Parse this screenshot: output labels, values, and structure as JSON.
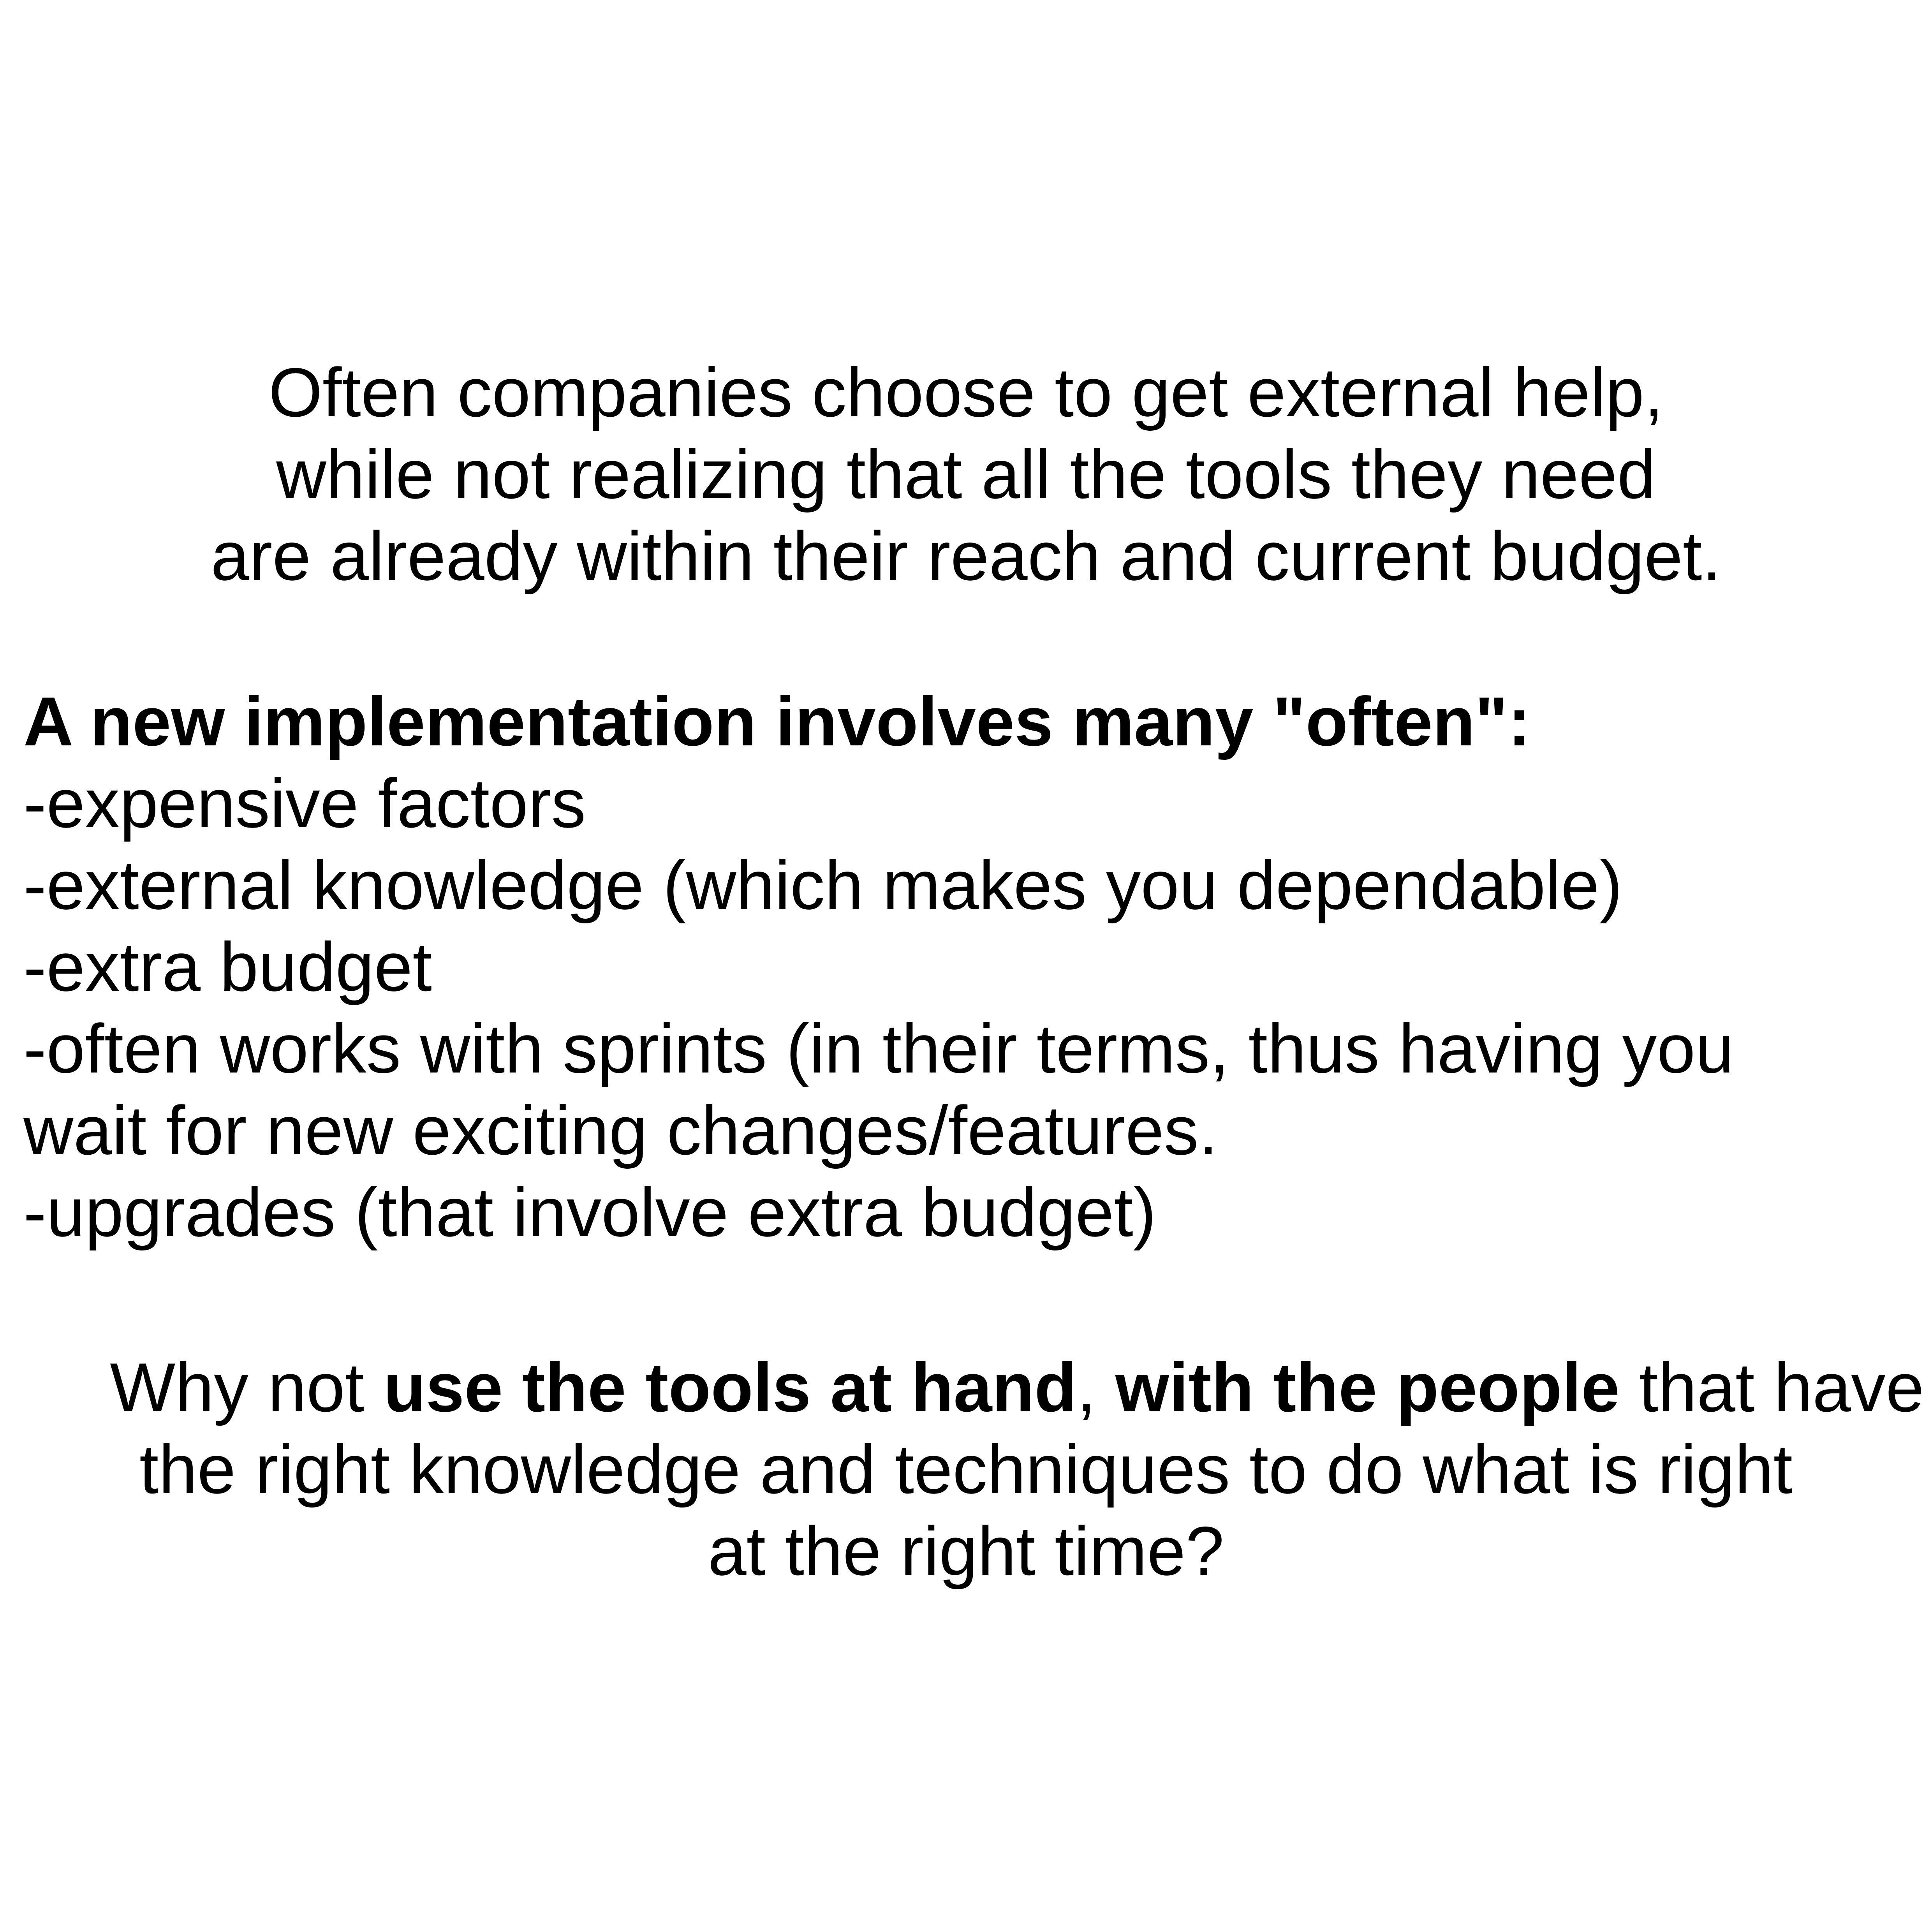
{
  "intro": {
    "lines": [
      "Often companies choose to get external help,",
      "while not realizing that all the tools they need",
      "are already within their reach and current budget."
    ]
  },
  "list": {
    "heading": "A new implementation involves many \"often\":",
    "items": [
      "-expensive factors",
      "-external knowledge (which makes you dependable)",
      "-extra budget",
      "-often works with sprints (in their terms, thus having you",
      "wait for new exciting changes/features.",
      "-upgrades (that involve extra budget)"
    ]
  },
  "closing": {
    "line1": {
      "prefix": "Why not ",
      "bold1": "use the tools at hand",
      "comma": ", ",
      "bold2": "with the people",
      "suffix": " that have"
    },
    "line2": "the right knowledge and techniques to do what is right",
    "line3": "at the right time?"
  }
}
